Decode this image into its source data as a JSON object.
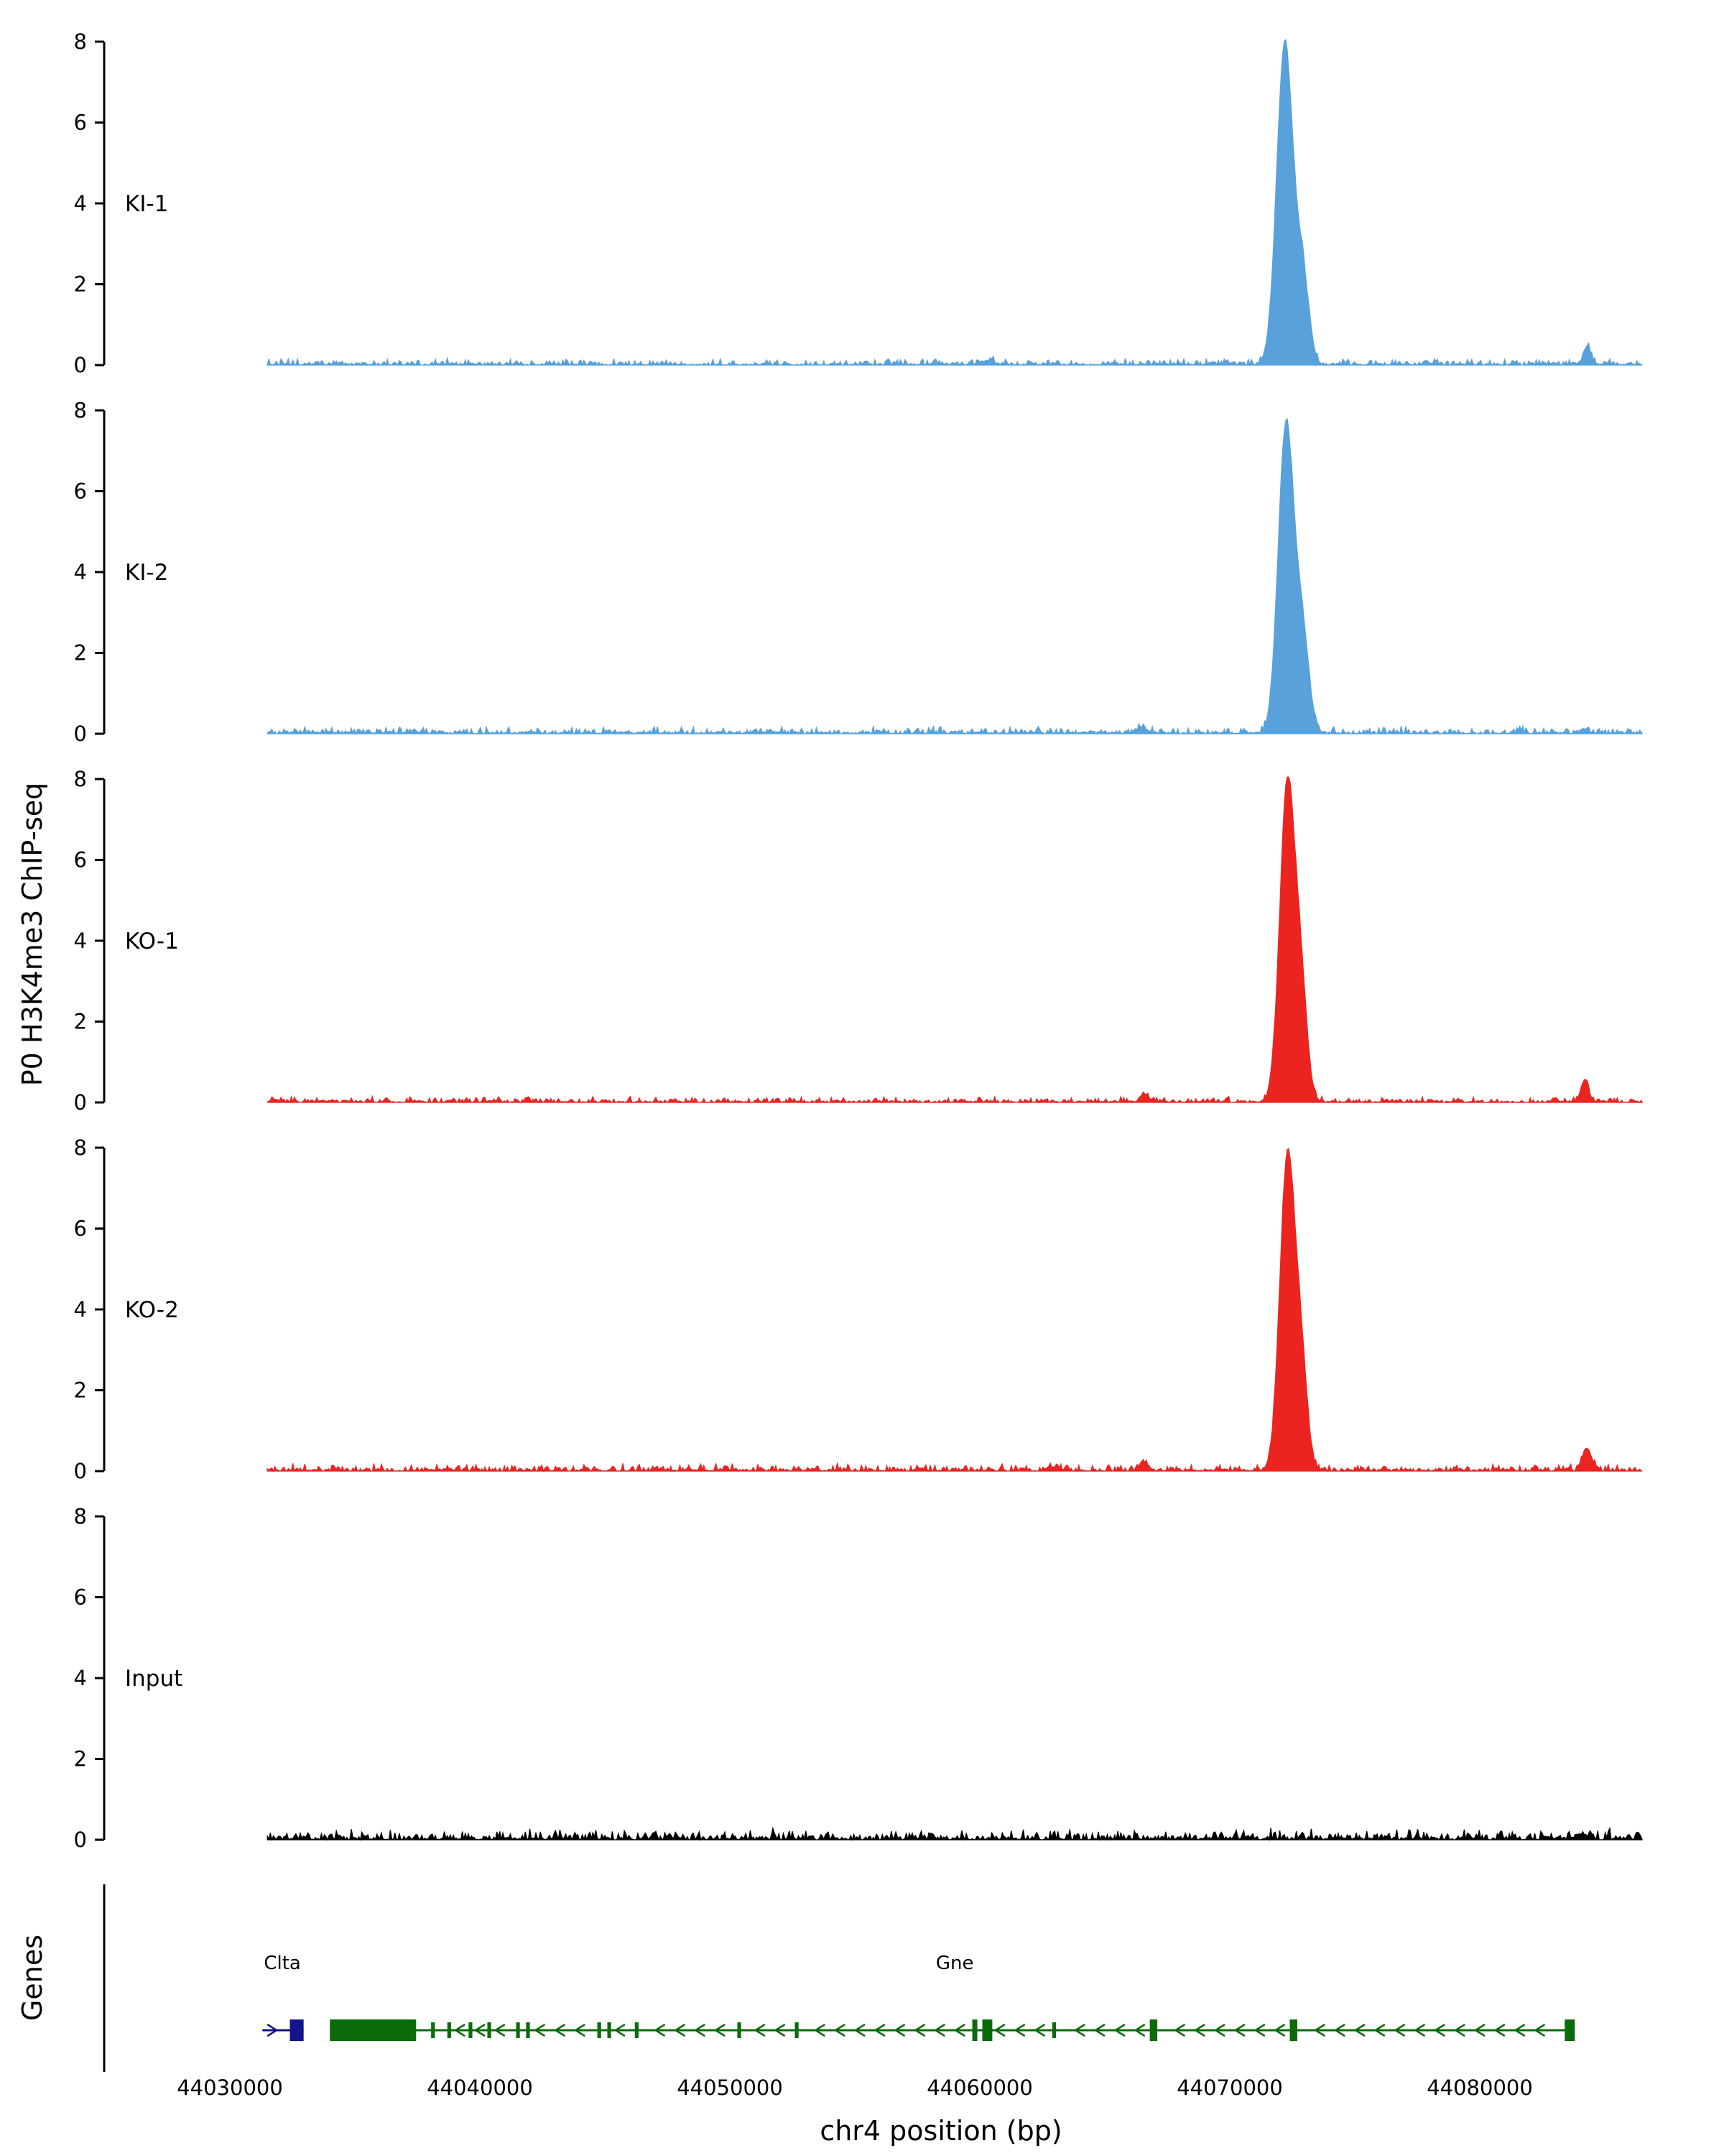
{
  "figure": {
    "ylabel": "P0 H3K4me3 ChIP-seq",
    "xlabel": "chr4 position (bp)",
    "genes_panel_label": "Genes"
  },
  "chart_data": {
    "type": "area",
    "title": "",
    "xlabel": "chr4 position (bp)",
    "ylabel": "P0 H3K4me3 ChIP-seq",
    "x_range": [
      44031500,
      44086500
    ],
    "x_ticks": [
      44030000,
      44040000,
      44050000,
      44060000,
      44070000,
      44080000
    ],
    "ylim": [
      0,
      8
    ],
    "y_ticks": [
      0,
      2,
      4,
      6,
      8
    ],
    "grid": false,
    "tracks": [
      {
        "name": "KI-1",
        "color": "#58A1DA",
        "noise": 0.18,
        "peaks": [
          {
            "c": 44072200,
            "h": 7.95,
            "s": 320
          },
          {
            "c": 44072900,
            "h": 2.2,
            "s": 260
          },
          {
            "c": 44084300,
            "h": 0.45,
            "s": 150
          },
          {
            "c": 44060300,
            "h": 0.1,
            "s": 250
          }
        ]
      },
      {
        "name": "KI-2",
        "color": "#58A1DA",
        "noise": 0.2,
        "peaks": [
          {
            "c": 44072250,
            "h": 7.6,
            "s": 310
          },
          {
            "c": 44072900,
            "h": 2.4,
            "s": 270
          },
          {
            "c": 44066500,
            "h": 0.14,
            "s": 200
          },
          {
            "c": 44084200,
            "h": 0.12,
            "s": 150
          }
        ]
      },
      {
        "name": "KO-1",
        "color": "#EB2420",
        "noise": 0.16,
        "peaks": [
          {
            "c": 44072300,
            "h": 7.85,
            "s": 300
          },
          {
            "c": 44072850,
            "h": 2.6,
            "s": 250
          },
          {
            "c": 44066600,
            "h": 0.2,
            "s": 160
          },
          {
            "c": 44084200,
            "h": 0.5,
            "s": 160
          }
        ]
      },
      {
        "name": "KO-2",
        "color": "#EB2420",
        "noise": 0.2,
        "peaks": [
          {
            "c": 44072300,
            "h": 7.7,
            "s": 300
          },
          {
            "c": 44072850,
            "h": 2.5,
            "s": 250
          },
          {
            "c": 44066600,
            "h": 0.18,
            "s": 160
          },
          {
            "c": 44084300,
            "h": 0.55,
            "s": 170
          },
          {
            "c": 44063000,
            "h": 0.1,
            "s": 200
          }
        ]
      },
      {
        "name": "Input",
        "color": "#000000",
        "noise": 0.3,
        "peaks": [
          {
            "c": 44084200,
            "h": 0.08,
            "s": 200
          }
        ]
      }
    ],
    "genes": [
      {
        "name": "Clta",
        "color": "#14148C",
        "start": 44031300,
        "end": 44032950,
        "strand": "+",
        "label_at": 44032100,
        "exons": [
          {
            "s": 44032400,
            "e": 44032950,
            "tall": true
          }
        ]
      },
      {
        "name": "Gne",
        "color": "#0A6B0A",
        "start": 44034000,
        "end": 44083800,
        "strand": "-",
        "label_at": 44059000,
        "exons": [
          {
            "s": 44034000,
            "e": 44037450,
            "tall": true
          },
          {
            "s": 44038050,
            "e": 44038200
          },
          {
            "s": 44038700,
            "e": 44038850
          },
          {
            "s": 44039550,
            "e": 44039700
          },
          {
            "s": 44040300,
            "e": 44040450
          },
          {
            "s": 44041450,
            "e": 44041600
          },
          {
            "s": 44041850,
            "e": 44042000
          },
          {
            "s": 44044700,
            "e": 44044850
          },
          {
            "s": 44045100,
            "e": 44045250
          },
          {
            "s": 44046200,
            "e": 44046350
          },
          {
            "s": 44050300,
            "e": 44050450
          },
          {
            "s": 44052600,
            "e": 44052750
          },
          {
            "s": 44059700,
            "e": 44059900,
            "tall": true
          },
          {
            "s": 44060100,
            "e": 44060500,
            "tall": true
          },
          {
            "s": 44062900,
            "e": 44063050
          },
          {
            "s": 44066800,
            "e": 44067100,
            "tall": true
          },
          {
            "s": 44072400,
            "e": 44072700,
            "tall": true
          },
          {
            "s": 44083400,
            "e": 44083800,
            "tall": true
          }
        ]
      }
    ]
  }
}
